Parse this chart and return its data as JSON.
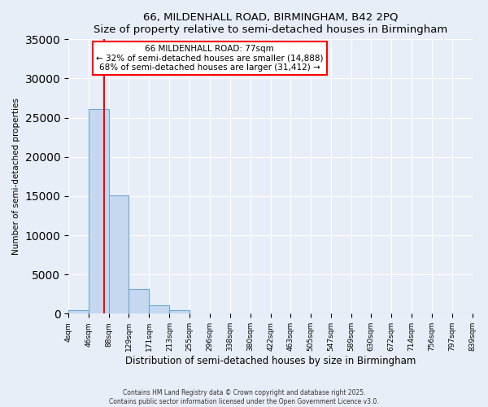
{
  "title": "66, MILDENHALL ROAD, BIRMINGHAM, B42 2PQ",
  "subtitle": "Size of property relative to semi-detached houses in Birmingham",
  "xlabel": "Distribution of semi-detached houses by size in Birmingham",
  "ylabel": "Number of semi-detached properties",
  "bar_values": [
    400,
    26100,
    15100,
    3100,
    1100,
    500,
    50,
    0,
    0,
    0,
    0,
    0,
    0,
    0,
    0,
    0,
    0,
    0,
    0,
    0
  ],
  "bin_edges": [
    4,
    46,
    88,
    129,
    171,
    213,
    255,
    296,
    338,
    380,
    422,
    463,
    505,
    547,
    589,
    630,
    672,
    714,
    756,
    797,
    839
  ],
  "tick_labels": [
    "4sqm",
    "46sqm",
    "88sqm",
    "129sqm",
    "171sqm",
    "213sqm",
    "255sqm",
    "296sqm",
    "338sqm",
    "380sqm",
    "422sqm",
    "463sqm",
    "505sqm",
    "547sqm",
    "589sqm",
    "630sqm",
    "672sqm",
    "714sqm",
    "756sqm",
    "797sqm",
    "839sqm"
  ],
  "bar_color": "#c5d8f0",
  "bar_edge_color": "#6aaad4",
  "vline_x": 77,
  "vline_color": "red",
  "ylim": [
    0,
    35000
  ],
  "yticks": [
    0,
    5000,
    10000,
    15000,
    20000,
    25000,
    30000,
    35000
  ],
  "annotation_title": "66 MILDENHALL ROAD: 77sqm",
  "annotation_line1": "← 32% of semi-detached houses are smaller (14,888)",
  "annotation_line2": "68% of semi-detached houses are larger (31,412) →",
  "annotation_box_color": "white",
  "annotation_box_edge": "red",
  "footer1": "Contains HM Land Registry data © Crown copyright and database right 2025.",
  "footer2": "Contains public sector information licensed under the Open Government Licence v3.0.",
  "bg_color": "#e8eef8",
  "plot_bg_color": "#e8eef8",
  "grid_color": "white"
}
